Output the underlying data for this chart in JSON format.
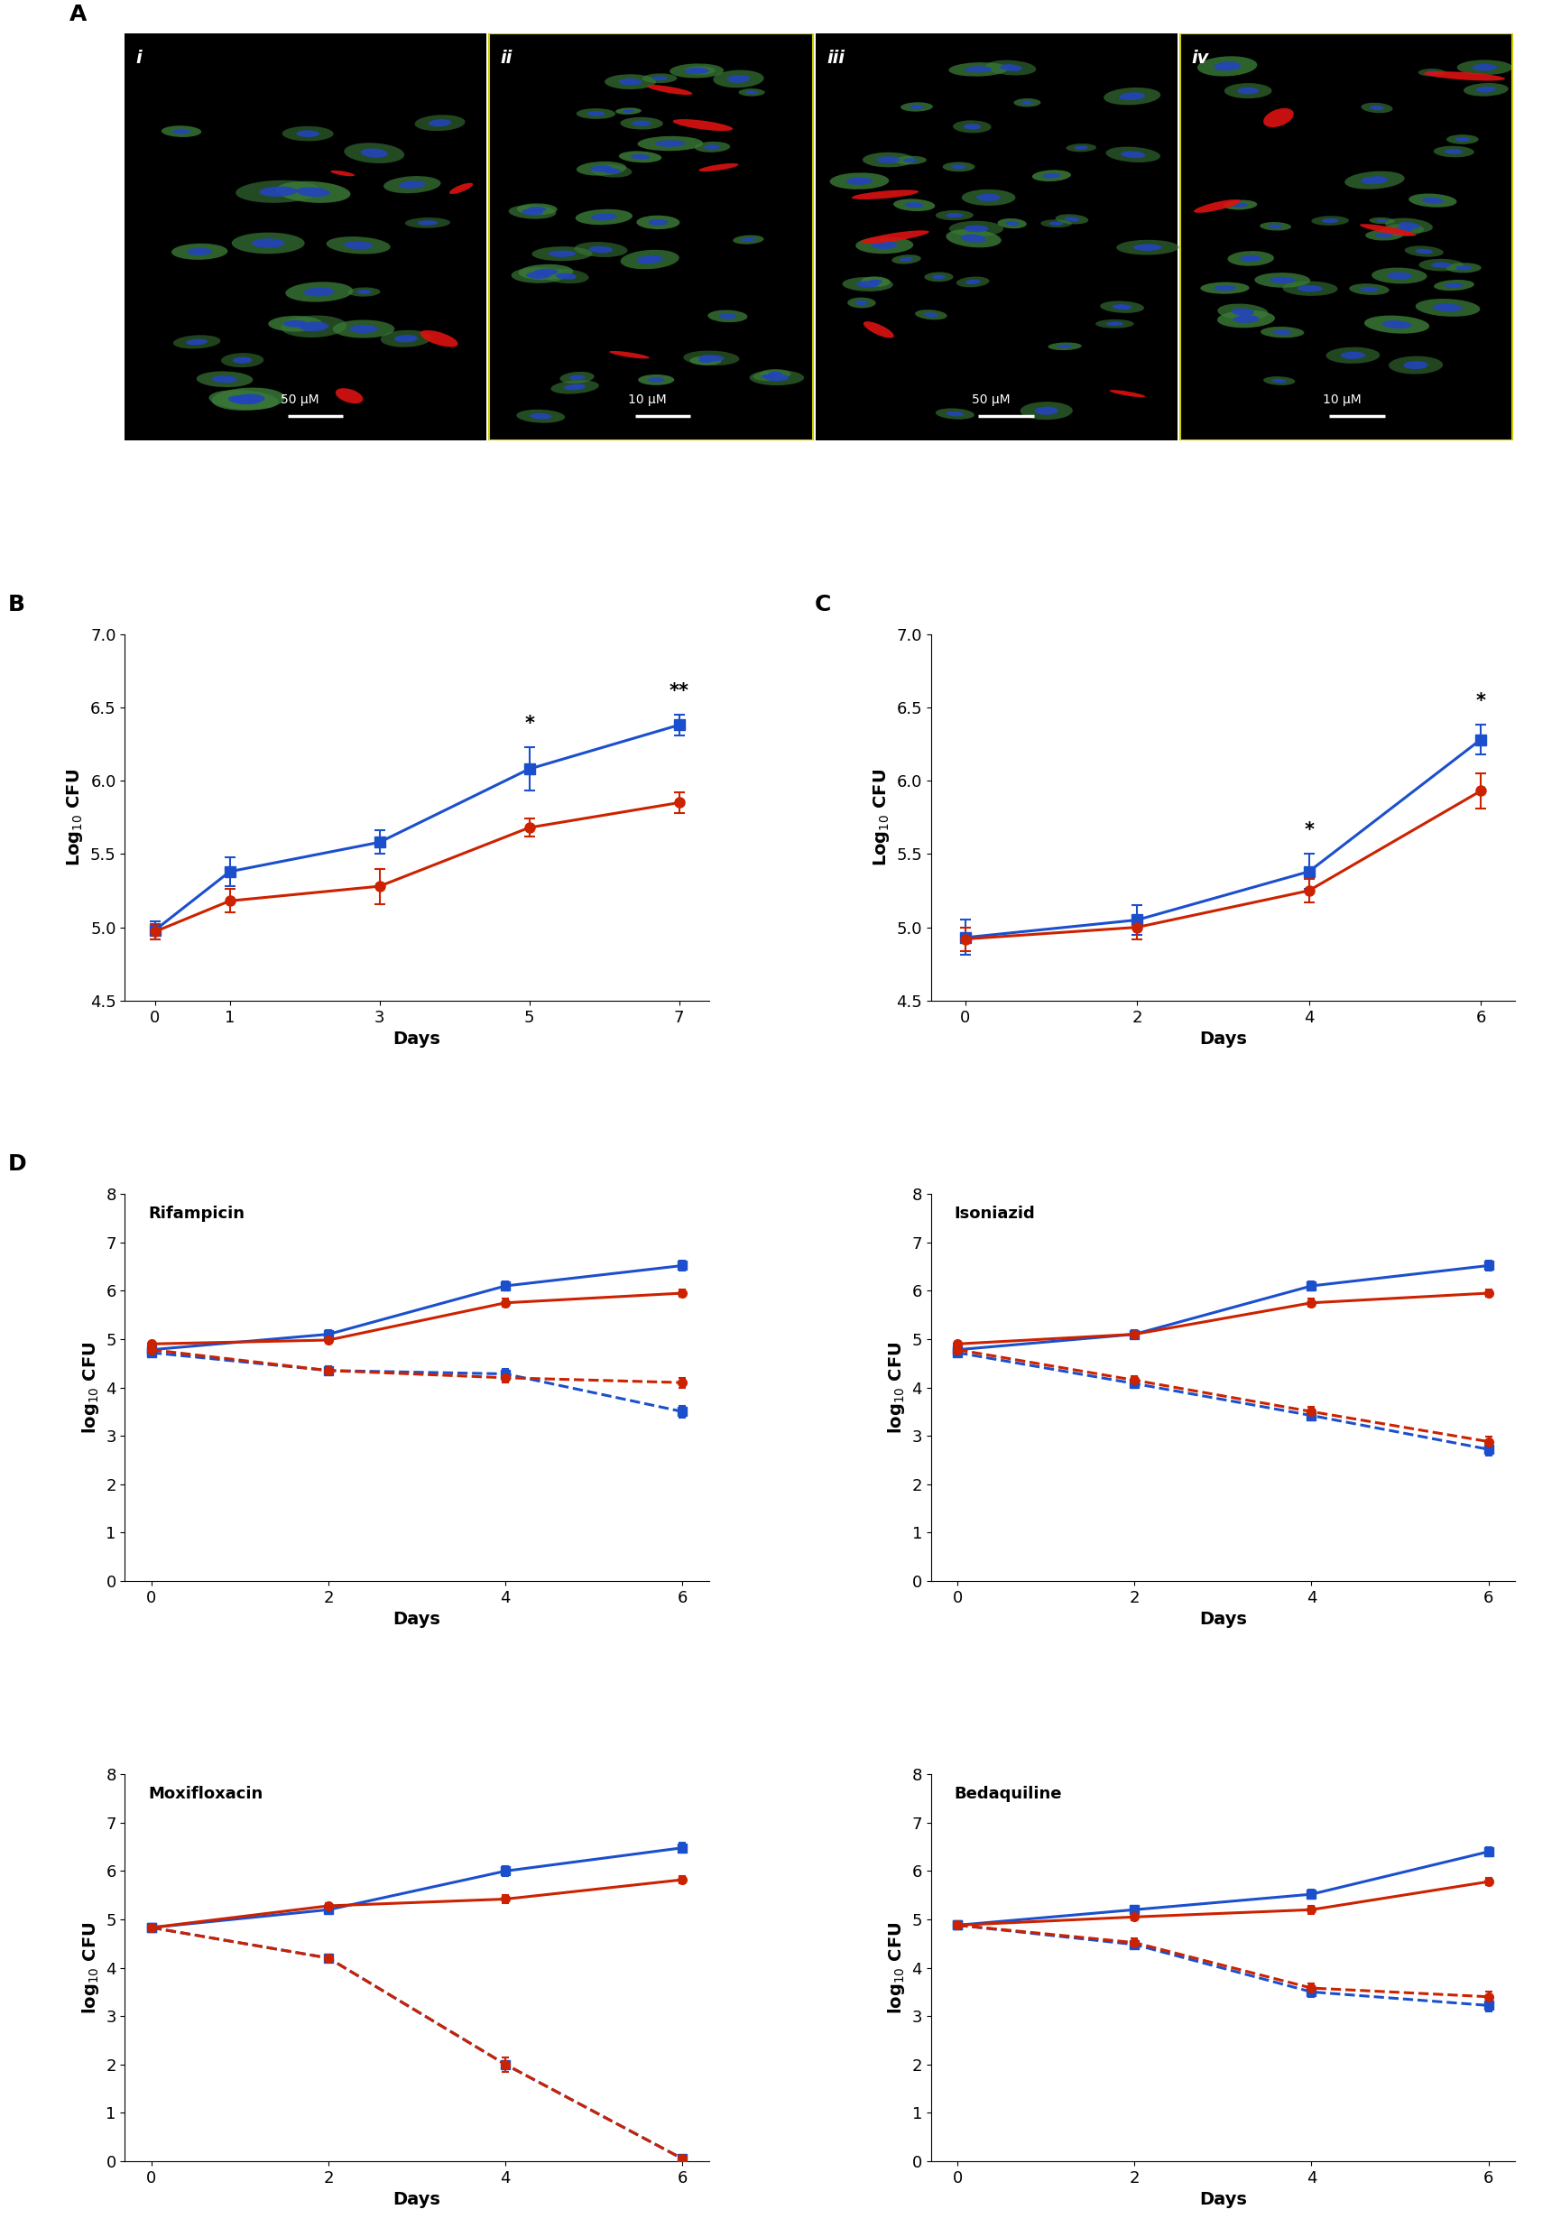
{
  "panel_B": {
    "days": [
      0,
      1,
      3,
      5,
      7
    ],
    "blue_mean": [
      4.98,
      5.38,
      5.58,
      6.08,
      6.38
    ],
    "blue_err": [
      0.06,
      0.1,
      0.08,
      0.15,
      0.07
    ],
    "red_mean": [
      4.97,
      5.18,
      5.28,
      5.68,
      5.85
    ],
    "red_err": [
      0.05,
      0.08,
      0.12,
      0.06,
      0.07
    ],
    "ylabel": "Log$_{10}$ CFU",
    "xlabel": "Days",
    "ylim": [
      4.5,
      7.0
    ],
    "yticks": [
      4.5,
      5.0,
      5.5,
      6.0,
      6.5,
      7.0
    ],
    "xticks": [
      0,
      1,
      3,
      5,
      7
    ],
    "sig_markers": [
      [
        5,
        "*"
      ],
      [
        7,
        "**"
      ]
    ]
  },
  "panel_C": {
    "days": [
      0,
      2,
      4,
      6
    ],
    "blue_mean": [
      4.93,
      5.05,
      5.38,
      6.28
    ],
    "blue_err": [
      0.12,
      0.1,
      0.12,
      0.1
    ],
    "red_mean": [
      4.92,
      5.0,
      5.25,
      5.93
    ],
    "red_err": [
      0.08,
      0.08,
      0.08,
      0.12
    ],
    "ylabel": "Log$_{10}$ CFU",
    "xlabel": "Days",
    "ylim": [
      4.5,
      7.0
    ],
    "yticks": [
      4.5,
      5.0,
      5.5,
      6.0,
      6.5,
      7.0
    ],
    "xticks": [
      0,
      2,
      4,
      6
    ],
    "sig_markers": [
      [
        4,
        "*"
      ],
      [
        6,
        "*"
      ]
    ]
  },
  "panel_D": {
    "days": [
      0,
      2,
      4,
      6
    ],
    "subpanels": [
      {
        "title": "Rifampicin",
        "blue_solid_mean": [
          4.78,
          5.1,
          6.1,
          6.52
        ],
        "blue_solid_err": [
          0.05,
          0.08,
          0.1,
          0.1
        ],
        "red_solid_mean": [
          4.9,
          4.98,
          5.75,
          5.95
        ],
        "red_solid_err": [
          0.05,
          0.06,
          0.08,
          0.08
        ],
        "blue_dash_mean": [
          4.72,
          4.35,
          4.28,
          3.5
        ],
        "blue_dash_err": [
          0.05,
          0.08,
          0.1,
          0.12
        ],
        "red_dash_mean": [
          4.78,
          4.35,
          4.2,
          4.1
        ],
        "red_dash_err": [
          0.05,
          0.08,
          0.1,
          0.1
        ]
      },
      {
        "title": "Isoniazid",
        "blue_solid_mean": [
          4.78,
          5.1,
          6.1,
          6.52
        ],
        "blue_solid_err": [
          0.05,
          0.08,
          0.1,
          0.1
        ],
        "red_solid_mean": [
          4.9,
          5.1,
          5.75,
          5.95
        ],
        "red_solid_err": [
          0.05,
          0.06,
          0.08,
          0.08
        ],
        "blue_dash_mean": [
          4.72,
          4.08,
          3.42,
          2.72
        ],
        "blue_dash_err": [
          0.05,
          0.08,
          0.1,
          0.12
        ],
        "red_dash_mean": [
          4.78,
          4.15,
          3.5,
          2.88
        ],
        "red_dash_err": [
          0.05,
          0.08,
          0.1,
          0.1
        ]
      },
      {
        "title": "Moxifloxacin",
        "blue_solid_mean": [
          4.83,
          5.2,
          6.0,
          6.48
        ],
        "blue_solid_err": [
          0.05,
          0.08,
          0.1,
          0.1
        ],
        "red_solid_mean": [
          4.83,
          5.28,
          5.42,
          5.82
        ],
        "red_solid_err": [
          0.05,
          0.06,
          0.08,
          0.08
        ],
        "blue_dash_mean": [
          4.83,
          4.2,
          2.0,
          0.05
        ],
        "blue_dash_err": [
          0.05,
          0.08,
          0.15,
          0.04
        ],
        "red_dash_mean": [
          4.83,
          4.2,
          2.0,
          0.05
        ],
        "red_dash_err": [
          0.05,
          0.08,
          0.15,
          0.04
        ]
      },
      {
        "title": "Bedaquiline",
        "blue_solid_mean": [
          4.88,
          5.2,
          5.52,
          6.4
        ],
        "blue_solid_err": [
          0.05,
          0.08,
          0.1,
          0.1
        ],
        "red_solid_mean": [
          4.88,
          5.05,
          5.2,
          5.78
        ],
        "red_solid_err": [
          0.05,
          0.06,
          0.08,
          0.08
        ],
        "blue_dash_mean": [
          4.88,
          4.48,
          3.5,
          3.22
        ],
        "blue_dash_err": [
          0.05,
          0.08,
          0.1,
          0.12
        ],
        "red_dash_mean": [
          4.88,
          4.52,
          3.58,
          3.4
        ],
        "red_dash_err": [
          0.05,
          0.08,
          0.1,
          0.1
        ]
      }
    ],
    "ylabel": "log$_{10}$ CFU",
    "xlabel": "Days",
    "ylim": [
      0,
      8
    ],
    "yticks": [
      0,
      1,
      2,
      3,
      4,
      5,
      6,
      7,
      8
    ],
    "xticks": [
      0,
      2,
      4,
      6
    ]
  },
  "colors": {
    "blue": "#1B4FCC",
    "red": "#CC2200"
  },
  "panel_labels_fontsize": 18,
  "axis_label_fontsize": 14,
  "tick_fontsize": 13,
  "microscopy": {
    "panels": [
      {
        "label": "i",
        "scale": "50 μM"
      },
      {
        "label": "ii",
        "scale": "10 μM"
      },
      {
        "label": "iii",
        "scale": "50 μM"
      },
      {
        "label": "iv",
        "scale": "10 μM"
      }
    ]
  }
}
